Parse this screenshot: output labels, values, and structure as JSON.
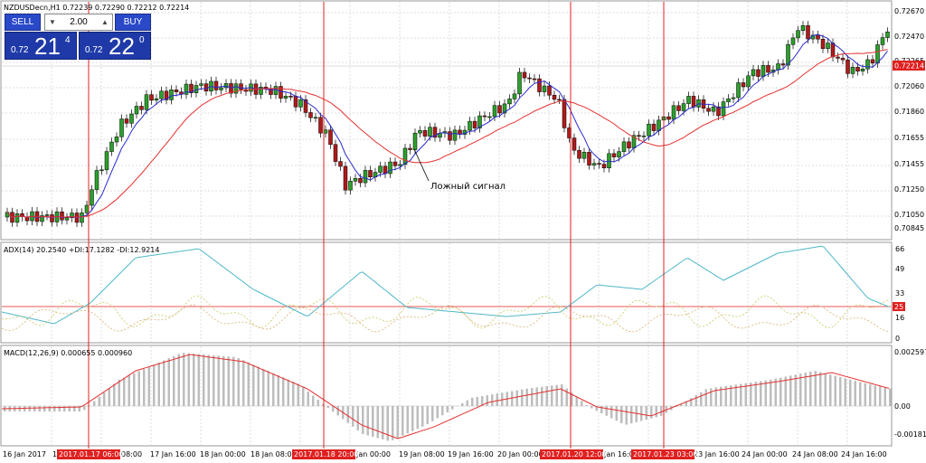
{
  "symbol_header": "NZDUSDecn,H1  0.72239 0.72290 0.72212 0.72214",
  "trade_panel": {
    "sell_label": "SELL",
    "buy_label": "BUY",
    "lot_value": "2.00",
    "sell_small": "0.72",
    "sell_big": "21",
    "sell_sup": "4",
    "buy_small": "0.72",
    "buy_big": "22",
    "buy_sup": "0"
  },
  "annotation": "Ложный сигнал",
  "price_axis_labels": [
    "0.72670",
    "0.72470",
    "0.72265",
    "0.72060",
    "0.71860",
    "0.71655",
    "0.71455",
    "0.71250",
    "0.71050",
    "0.70845"
  ],
  "current_price_label": "0.72214",
  "adx_header": "ADX(14) 20.2540 +DI:17.1282 -DI:12.9214",
  "adx_axis_labels": [
    "66",
    "49",
    "33",
    "16",
    "0"
  ],
  "adx_level_label": "25",
  "macd_header": "MACD(12,26,9) 0.000655 0.000960",
  "macd_axis_labels": [
    "0.002597",
    "0.00",
    "-0.00181"
  ],
  "time_labels": [
    "16 Jan 2017",
    "17",
    "08:00",
    "17 Jan 16:00",
    "18 Jan 00:00",
    "18 Jan 08:00",
    "Jan 00:00",
    "19 Jan 08:00",
    "19 Jan 16:00",
    "20 Jan 00:00",
    "Jan 16:00",
    "23 Jan 16:00",
    "24 Jan 00:00",
    "24 Jan 08:00",
    "24 Jan 16:00"
  ],
  "time_markers": [
    "2017.01.17 06:00",
    "2017.01.18 20:00",
    "2017.01.20 12:00",
    "2017.01.23 03:00"
  ],
  "colors": {
    "bull": "#2ca02c",
    "bear": "#b01a1a",
    "ma_fast": "#2a2ad0",
    "ma_slow": "#e53030",
    "adx_line": "#4fb8c8",
    "di_line": "#c8c860",
    "marker": "#e02020"
  }
}
